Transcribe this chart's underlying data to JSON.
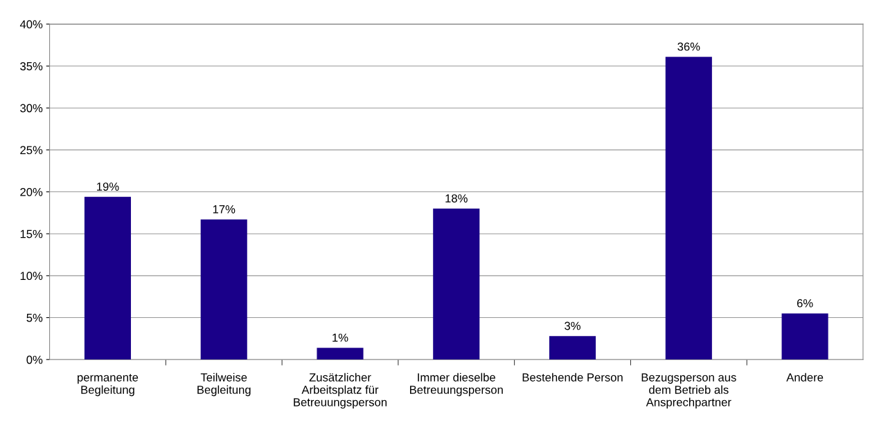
{
  "chart_data": {
    "type": "bar",
    "categories": [
      "permanente\nBegleitung",
      "Teilweise\nBegleitung",
      "Zusätzlicher\nArbeitsplatz für\nBetreuungsperson",
      "Immer dieselbe\nBetreuungsperson",
      "Bestehende Person",
      "Bezugsperson aus\ndem Betrieb als\nAnsprechpartner",
      "Andere"
    ],
    "values": [
      19.4,
      16.7,
      1.4,
      18.0,
      2.8,
      36.1,
      5.5
    ],
    "value_labels": [
      "19%",
      "17%",
      "1%",
      "18%",
      "3%",
      "36%",
      "6%"
    ],
    "color": "#1a0089",
    "ylim": [
      0,
      40
    ],
    "yticks": [
      {
        "value": 0,
        "label": "0%"
      },
      {
        "value": 5,
        "label": "5%"
      },
      {
        "value": 10,
        "label": "10%"
      },
      {
        "value": 15,
        "label": "15%"
      },
      {
        "value": 20,
        "label": "20%"
      },
      {
        "value": 25,
        "label": "25%"
      },
      {
        "value": 30,
        "label": "30%"
      },
      {
        "value": 35,
        "label": "35%"
      },
      {
        "value": 40,
        "label": "40%"
      }
    ],
    "grid": "y",
    "legend": false
  }
}
